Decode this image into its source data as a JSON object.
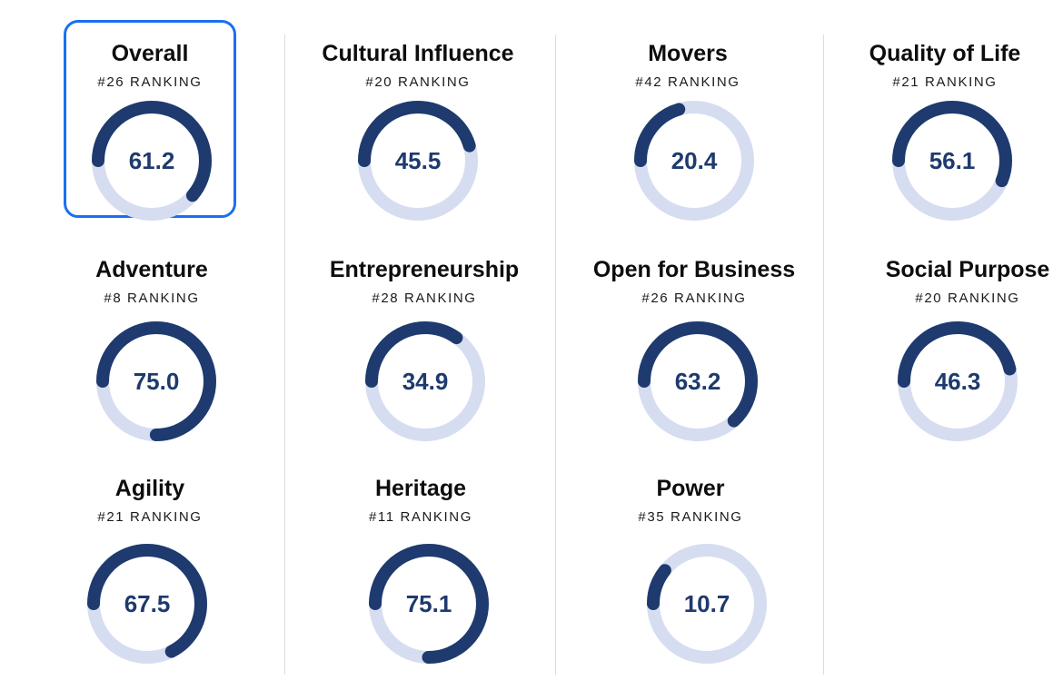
{
  "accent_color": "#1e3a6e",
  "track_color": "#d6ddf0",
  "selection_color": "#1a6ff2",
  "selected_index": 0,
  "cards": [
    {
      "title": "Overall",
      "rank": "#26 RANKING",
      "score": "61.2",
      "score_value": 61.2
    },
    {
      "title": "Cultural Influence",
      "rank": "#20 RANKING",
      "score": "45.5",
      "score_value": 45.5
    },
    {
      "title": "Movers",
      "rank": "#42 RANKING",
      "score": "20.4",
      "score_value": 20.4
    },
    {
      "title": "Quality of Life",
      "rank": "#21 RANKING",
      "score": "56.1",
      "score_value": 56.1
    },
    {
      "title": "Adventure",
      "rank": "#8 RANKING",
      "score": "75.0",
      "score_value": 75.0
    },
    {
      "title": "Entrepreneurship",
      "rank": "#28 RANKING",
      "score": "34.9",
      "score_value": 34.9
    },
    {
      "title": "Open for Business",
      "rank": "#26 RANKING",
      "score": "63.2",
      "score_value": 63.2
    },
    {
      "title": "Social Purpose",
      "rank": "#20 RANKING",
      "score": "46.3",
      "score_value": 46.3
    },
    {
      "title": "Agility",
      "rank": "#21 RANKING",
      "score": "67.5",
      "score_value": 67.5
    },
    {
      "title": "Heritage",
      "rank": "#11 RANKING",
      "score": "75.1",
      "score_value": 75.1
    },
    {
      "title": "Power",
      "rank": "#35 RANKING",
      "score": "10.7",
      "score_value": 10.7
    }
  ]
}
